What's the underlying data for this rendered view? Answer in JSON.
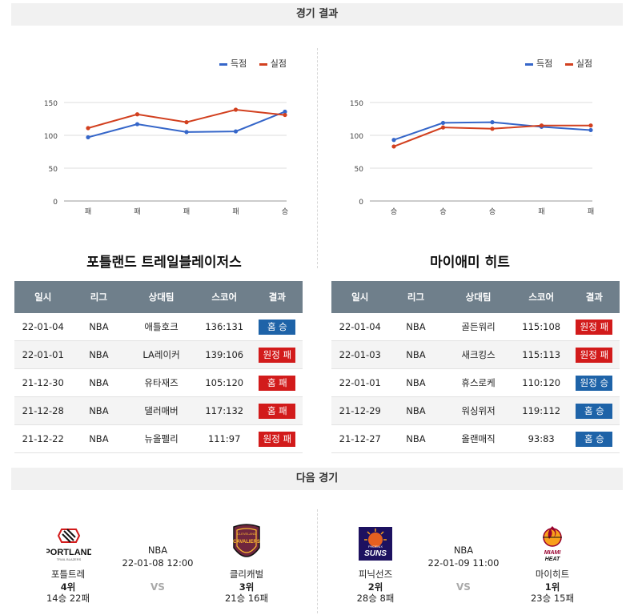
{
  "sections": {
    "results_title": "경기 결과",
    "next_title": "다음 경기"
  },
  "legend": {
    "scored": "득점",
    "allowed": "실점",
    "scored_color": "#3566c9",
    "allowed_color": "#d2401f"
  },
  "chart_data": [
    {
      "type": "line",
      "categories": [
        "패",
        "패",
        "패",
        "패",
        "승"
      ],
      "series": [
        {
          "name": "득점",
          "values": [
            97,
            117,
            105,
            106,
            136
          ]
        },
        {
          "name": "실점",
          "values": [
            111,
            132,
            120,
            139,
            131
          ]
        }
      ],
      "yticks": [
        0,
        50,
        100,
        150
      ],
      "ylim": [
        0,
        150
      ],
      "grid": true,
      "legend_position": "top-right"
    },
    {
      "type": "line",
      "categories": [
        "승",
        "승",
        "승",
        "패",
        "패"
      ],
      "series": [
        {
          "name": "득점",
          "values": [
            93,
            119,
            120,
            113,
            108
          ]
        },
        {
          "name": "실점",
          "values": [
            83,
            112,
            110,
            115,
            115
          ]
        }
      ],
      "yticks": [
        0,
        50,
        100,
        150
      ],
      "ylim": [
        0,
        150
      ],
      "grid": true,
      "legend_position": "top-right"
    }
  ],
  "table_headers": [
    "일시",
    "리그",
    "상대팀",
    "스코어",
    "결과"
  ],
  "teams": [
    {
      "title": "포틀랜드 트레일블레이저스",
      "rows": [
        {
          "date": "22-01-04",
          "league": "NBA",
          "opp": "애틀호크",
          "score": "136:131",
          "result": "홈 승",
          "win": true
        },
        {
          "date": "22-01-01",
          "league": "NBA",
          "opp": "LA레이커",
          "score": "139:106",
          "result": "원정 패",
          "win": false
        },
        {
          "date": "21-12-30",
          "league": "NBA",
          "opp": "유타재즈",
          "score": "105:120",
          "result": "홈 패",
          "win": false
        },
        {
          "date": "21-12-28",
          "league": "NBA",
          "opp": "댈러매버",
          "score": "117:132",
          "result": "홈 패",
          "win": false
        },
        {
          "date": "21-12-22",
          "league": "NBA",
          "opp": "뉴올펠리",
          "score": "111:97",
          "result": "원정 패",
          "win": false
        }
      ]
    },
    {
      "title": "마이애미 히트",
      "rows": [
        {
          "date": "22-01-04",
          "league": "NBA",
          "opp": "골든워리",
          "score": "115:108",
          "result": "원정 패",
          "win": false
        },
        {
          "date": "22-01-03",
          "league": "NBA",
          "opp": "새크킹스",
          "score": "115:113",
          "result": "원정 패",
          "win": false
        },
        {
          "date": "22-01-01",
          "league": "NBA",
          "opp": "휴스로케",
          "score": "110:120",
          "result": "원정 승",
          "win": true
        },
        {
          "date": "21-12-29",
          "league": "NBA",
          "opp": "워싱위저",
          "score": "119:112",
          "result": "홈 승",
          "win": true
        },
        {
          "date": "21-12-27",
          "league": "NBA",
          "opp": "올랜매직",
          "score": "93:83",
          "result": "홈 승",
          "win": true
        }
      ]
    }
  ],
  "next_games": [
    {
      "league": "NBA",
      "datetime": "22-01-08 12:00",
      "vs": "VS",
      "home": {
        "name": "포틀트레",
        "rank": "4위",
        "record": "14승 22패",
        "logo_text": "PORTLAND",
        "logo_sub": "TRAIL BLAZERS"
      },
      "away": {
        "name": "클리캐벌",
        "rank": "3위",
        "record": "21승 16패",
        "logo_text": "CAVALIERS",
        "logo_sub": "CLEVELAND"
      }
    },
    {
      "league": "NBA",
      "datetime": "22-01-09 11:00",
      "vs": "VS",
      "home": {
        "name": "피닉선즈",
        "rank": "2위",
        "record": "28승 8패",
        "logo_text": "SUNS",
        "logo_sub": "PHOENIX"
      },
      "away": {
        "name": "마이히트",
        "rank": "1위",
        "record": "23승 15패",
        "logo_text": "MIAMI",
        "logo_sub": "HEAT"
      }
    }
  ]
}
